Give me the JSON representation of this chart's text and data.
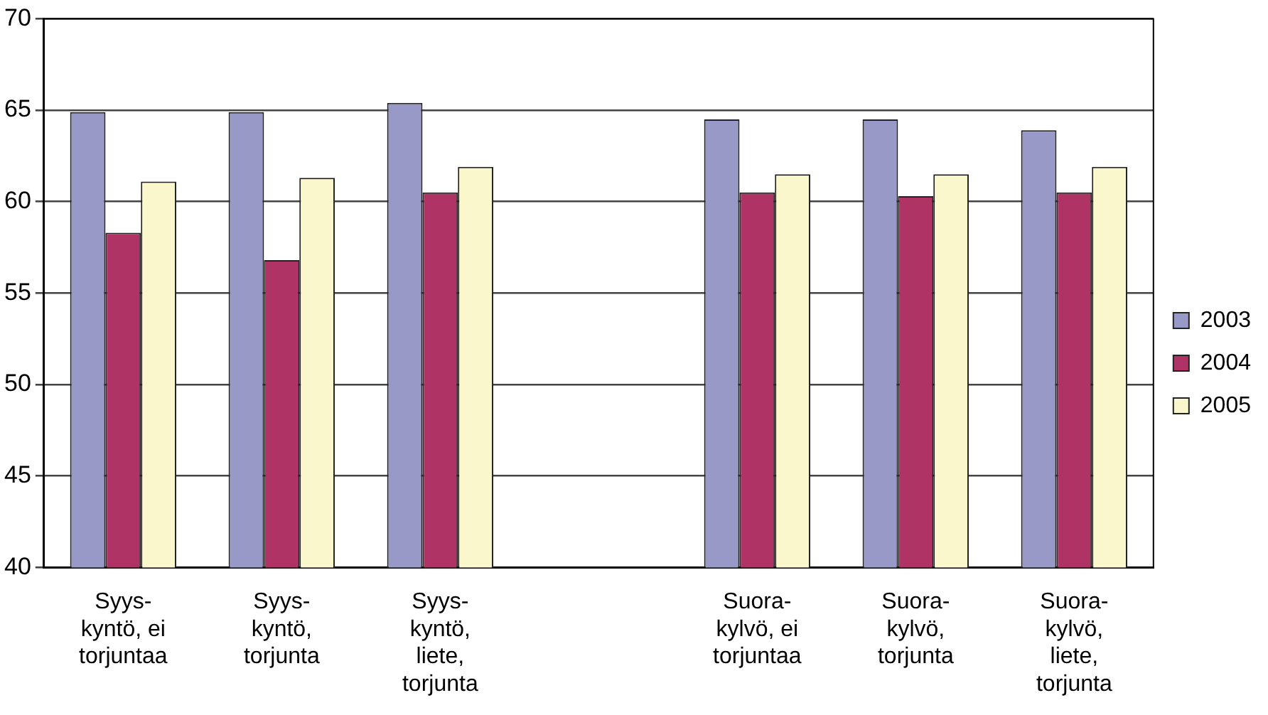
{
  "chart_data": {
    "type": "bar",
    "categories": [
      "Syys-kyntö, ei torjuntaa",
      "Syys-kyntö, torjunta",
      "Syys-kyntö, liete, torjunta",
      null,
      "Suora-kylvö, ei torjuntaa",
      "Suora-kylvö, torjunta",
      "Suora-kylvö, liete, torjunta"
    ],
    "series": [
      {
        "name": "2003",
        "color": "#9999c8",
        "values": [
          64.9,
          64.9,
          65.4,
          null,
          64.5,
          64.5,
          63.9
        ]
      },
      {
        "name": "2004",
        "color": "#b03366",
        "values": [
          58.3,
          56.8,
          60.5,
          null,
          60.5,
          60.3,
          60.5
        ]
      },
      {
        "name": "2005",
        "color": "#fbf7cc",
        "values": [
          61.1,
          61.3,
          61.9,
          null,
          61.5,
          61.5,
          61.9
        ]
      }
    ],
    "ylim": [
      40,
      70
    ],
    "yticks": [
      40,
      45,
      50,
      55,
      60,
      65,
      70
    ],
    "grid": "y",
    "legend": "right"
  }
}
